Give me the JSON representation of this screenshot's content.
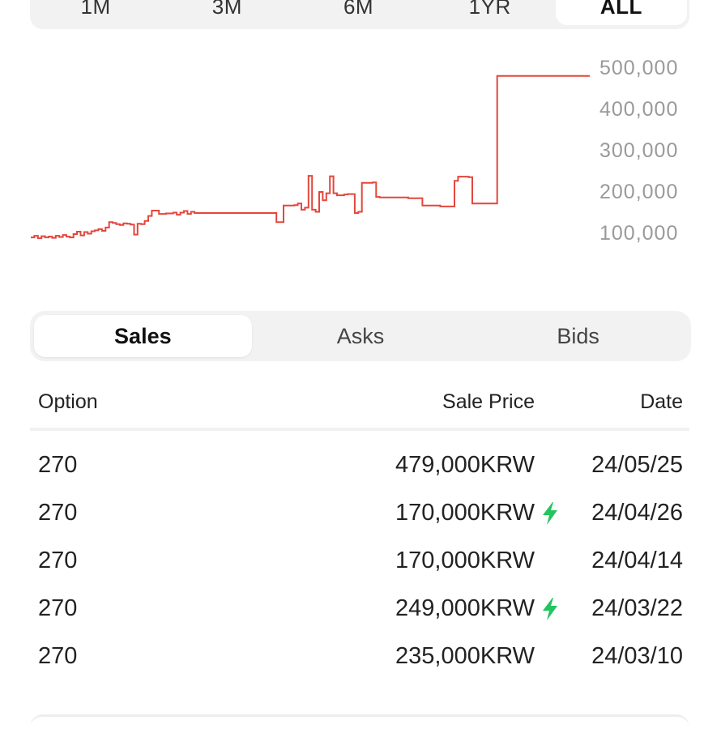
{
  "range_tabs": [
    {
      "label": "1M",
      "active": false
    },
    {
      "label": "3M",
      "active": false
    },
    {
      "label": "6M",
      "active": false
    },
    {
      "label": "1YR",
      "active": false
    },
    {
      "label": "ALL",
      "active": true
    }
  ],
  "chart_data": {
    "type": "line",
    "title": "",
    "xlabel": "",
    "ylabel": "",
    "y_ticks": [
      "500,000",
      "400,000",
      "300,000",
      "200,000",
      "100,000"
    ],
    "ylim": [
      100000,
      500000
    ],
    "grid": false,
    "line_color": "#e4463b",
    "tick_color": "#9a9a9a",
    "series": [
      {
        "values": [
          88000,
          92000,
          86000,
          91000,
          88000,
          90000,
          87000,
          92000,
          89000,
          94000,
          90000,
          88000,
          96000,
          102000,
          93000,
          101000,
          97000,
          103000,
          105000,
          108000,
          104000,
          112000,
          125000,
          123000,
          120000,
          118000,
          122000,
          121000,
          119000,
          95000,
          121000,
          120000,
          128000,
          140000,
          153000,
          153000,
          145000,
          145000,
          146000,
          146000,
          148000,
          143000,
          148000,
          152000,
          145000,
          150000,
          147000,
          147000,
          147000,
          147000,
          147000,
          147000,
          147000,
          147000,
          147000,
          147000,
          147000,
          147000,
          147000,
          147000,
          147000,
          147000,
          147000,
          147000,
          147000,
          147000,
          147000,
          147000,
          147000,
          125000,
          125000,
          165000,
          165000,
          165000,
          166000,
          170000,
          155000,
          160000,
          237000,
          155000,
          150000,
          198000,
          178000,
          195000,
          236000,
          195000,
          190000,
          190000,
          192000,
          193000,
          193000,
          147000,
          150000,
          220000,
          220000,
          220000,
          221000,
          186000,
          185000,
          185000,
          185000,
          185000,
          185000,
          185000,
          185000,
          185000,
          183000,
          183000,
          183000,
          183000,
          165000,
          165000,
          165000,
          165000,
          165000,
          163000,
          163000,
          163000,
          163000,
          225000,
          235000,
          235000,
          235000,
          234000,
          170000,
          170000,
          170000,
          170000,
          170000,
          170000,
          170000,
          479000,
          479000,
          479000,
          479000,
          479000,
          479000,
          479000,
          479000,
          479000,
          479000,
          479000,
          479000,
          479000,
          479000,
          479000,
          479000,
          479000,
          479000,
          479000,
          479000,
          479000,
          479000,
          479000,
          479000,
          479000,
          479000,
          479000
        ]
      }
    ]
  },
  "segments": [
    {
      "label": "Sales",
      "active": true
    },
    {
      "label": "Asks",
      "active": false
    },
    {
      "label": "Bids",
      "active": false
    }
  ],
  "table": {
    "headers": {
      "option": "Option",
      "price": "Sale Price",
      "date": "Date"
    },
    "rows": [
      {
        "option": "270",
        "price": "479,000KRW",
        "date": "24/05/25",
        "bolt": false
      },
      {
        "option": "270",
        "price": "170,000KRW",
        "date": "24/04/26",
        "bolt": true
      },
      {
        "option": "270",
        "price": "170,000KRW",
        "date": "24/04/14",
        "bolt": false
      },
      {
        "option": "270",
        "price": "249,000KRW",
        "date": "24/03/22",
        "bolt": true
      },
      {
        "option": "270",
        "price": "235,000KRW",
        "date": "24/03/10",
        "bolt": false
      }
    ],
    "bolt_icon": "lightning-bolt-icon",
    "bolt_color": "#22c55e"
  }
}
